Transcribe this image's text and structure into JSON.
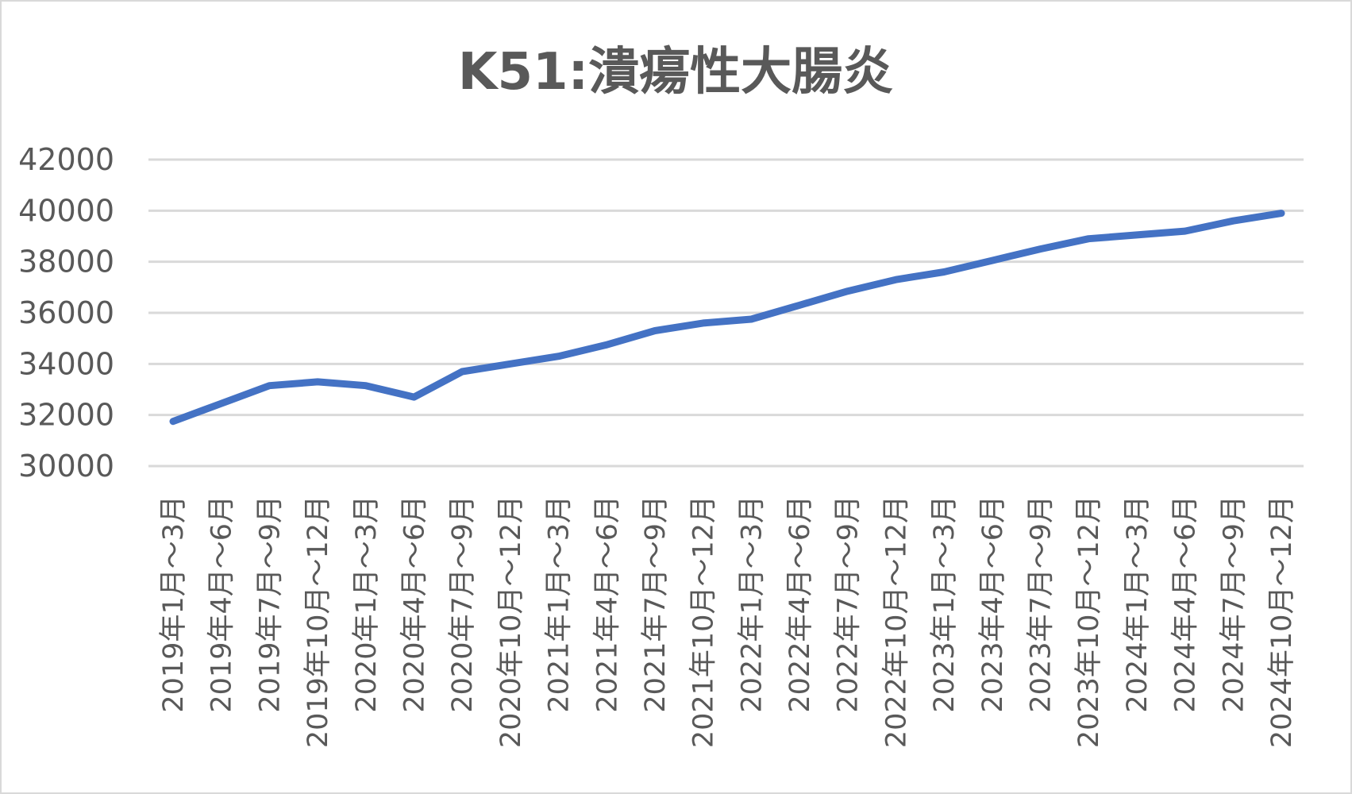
{
  "chart_data": {
    "type": "line",
    "title": "K51:潰瘍性大腸炎",
    "xlabel": "",
    "ylabel": "",
    "ylim": [
      30000,
      42000
    ],
    "yticks": [
      30000,
      32000,
      34000,
      36000,
      38000,
      40000,
      42000
    ],
    "grid": true,
    "legend": "none",
    "colors": {
      "series": "#4472c4",
      "grid": "#d9d9d9",
      "text": "#595959"
    },
    "categories": [
      "2019年1月～3月",
      "2019年4月～6月",
      "2019年7月～9月",
      "2019年10月～12月",
      "2020年1月～3月",
      "2020年4月～6月",
      "2020年7月～9月",
      "2020年10月～12月",
      "2021年1月～3月",
      "2021年4月～6月",
      "2021年7月～9月",
      "2021年10月～12月",
      "2022年1月～3月",
      "2022年4月～6月",
      "2022年7月～9月",
      "2022年10月～12月",
      "2023年1月～3月",
      "2023年4月～6月",
      "2023年7月～9月",
      "2023年10月～12月",
      "2024年1月～3月",
      "2024年4月～6月",
      "2024年7月～9月",
      "2024年10月～12月"
    ],
    "series": [
      {
        "values": [
          31750,
          32450,
          33150,
          33300,
          33150,
          32700,
          33700,
          34000,
          34300,
          34750,
          35300,
          35600,
          35750,
          36300,
          36850,
          37300,
          37600,
          38050,
          38500,
          38900,
          39050,
          39200,
          39600,
          39900
        ]
      }
    ]
  }
}
